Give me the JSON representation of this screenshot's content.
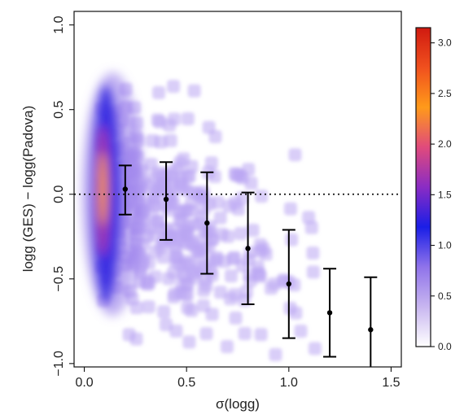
{
  "chart_data": {
    "type": "scatter",
    "title": "",
    "xlabel": "σ(logg)",
    "ylabel": "logg (GES) − logg(Padova)",
    "xlim": [
      -0.05,
      1.55
    ],
    "ylim": [
      -1.02,
      1.08
    ],
    "xticks": [
      0.0,
      0.5,
      1.0,
      1.5
    ],
    "xtick_labels": [
      "0.0",
      "0.5",
      "1.0",
      "1.5"
    ],
    "yticks": [
      -1.0,
      -0.5,
      0.0,
      0.5,
      1.0
    ],
    "ytick_labels": [
      "−1.0",
      "−0.5",
      "0.0",
      "0.5",
      "1.0"
    ],
    "reference_line": {
      "y": 0.0,
      "style": "dotted"
    },
    "density_background": "smoothed scatter density, highest near σ≈0.08",
    "binned_points": {
      "x": [
        0.2,
        0.4,
        0.6,
        0.8,
        1.0,
        1.2,
        1.4
      ],
      "y": [
        0.03,
        -0.03,
        -0.17,
        -0.32,
        -0.53,
        -0.7,
        -0.8
      ],
      "y_low": [
        -0.12,
        -0.27,
        -0.47,
        -0.65,
        -0.85,
        -0.96,
        -1.07
      ],
      "y_high": [
        0.17,
        0.19,
        0.13,
        0.01,
        -0.21,
        -0.44,
        -0.49
      ]
    },
    "colorbar": {
      "ticks": [
        0.0,
        0.5,
        1.0,
        1.5,
        2.0,
        2.5,
        3.0
      ],
      "tick_labels": [
        "0.0",
        "0.5",
        "1.0",
        "1.5",
        "2.0",
        "2.5",
        "3.0"
      ],
      "range": [
        0.0,
        3.15
      ],
      "colors": [
        "#ffffff",
        "#c8b6f0",
        "#8f73ea",
        "#1a1ee6",
        "#8a2cc4",
        "#e04a7c",
        "#ff9a1a",
        "#f0501e",
        "#d01a10"
      ]
    }
  }
}
